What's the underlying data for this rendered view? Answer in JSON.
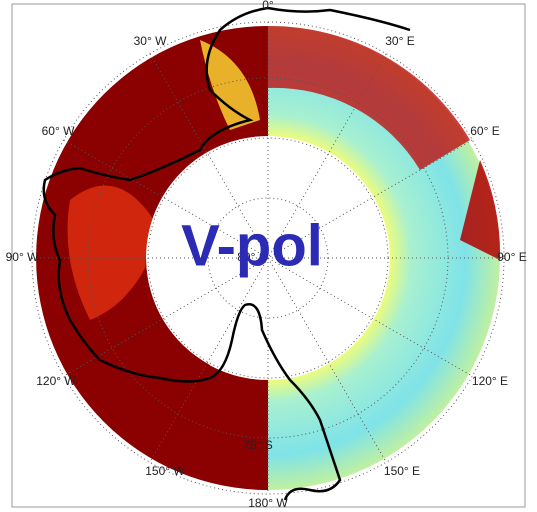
{
  "title": "V-pol",
  "longitude_labels": [
    "0°",
    "30° E",
    "60° E",
    "90° E",
    "120° E",
    "150° E",
    "180° W",
    "150° W",
    "120° W",
    "90° W",
    "60° W",
    "30° W"
  ],
  "latitude_labels": [
    "80° S",
    "75° S"
  ]
}
